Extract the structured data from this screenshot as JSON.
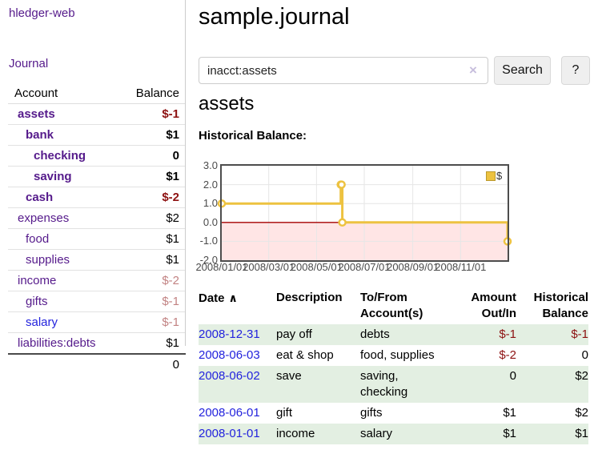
{
  "sidebar": {
    "app_title": "hledger-web",
    "journal_link": "Journal",
    "accounts_table": {
      "headers": {
        "account": "Account",
        "balance": "Balance"
      },
      "rows": [
        {
          "name": "assets",
          "balance": "$-1"
        },
        {
          "name": "bank",
          "balance": "$1"
        },
        {
          "name": "checking",
          "balance": "0"
        },
        {
          "name": "saving",
          "balance": "$1"
        },
        {
          "name": "cash",
          "balance": "$-2"
        },
        {
          "name": "expenses",
          "balance": "$2"
        },
        {
          "name": "food",
          "balance": "$1"
        },
        {
          "name": "supplies",
          "balance": "$1"
        },
        {
          "name": "income",
          "balance": "$-2"
        },
        {
          "name": "gifts",
          "balance": "$-1"
        },
        {
          "name": "salary",
          "balance": "$-1"
        },
        {
          "name": "liabilities:debts",
          "balance": "$1"
        }
      ],
      "total": "0"
    }
  },
  "main": {
    "title": "sample.journal",
    "search": {
      "query": "inacct:assets",
      "clear_icon": "×",
      "button_label": "Search",
      "help_label": "?"
    },
    "account_heading": "assets",
    "chart_label": "Historical Balance:",
    "register": {
      "headers": {
        "date": "Date",
        "sort_icon": "∧",
        "description": "Description",
        "account": "To/From\nAccount(s)",
        "amount": "Amount\nOut/In",
        "balance": "Historical\nBalance"
      },
      "rows": [
        {
          "date": "2008-12-31",
          "description": "pay off",
          "account": "debts",
          "amount": "$-1",
          "balance": "$-1"
        },
        {
          "date": "2008-06-03",
          "description": "eat & shop",
          "account": "food, supplies",
          "amount": "$-2",
          "balance": "0"
        },
        {
          "date": "2008-06-02",
          "description": "save",
          "account": "saving,\nchecking",
          "amount": "0",
          "balance": "$2"
        },
        {
          "date": "2008-06-01",
          "description": "gift",
          "account": "gifts",
          "amount": "$1",
          "balance": "$2"
        },
        {
          "date": "2008-01-01",
          "description": "income",
          "account": "salary",
          "amount": "$1",
          "balance": "$1"
        }
      ]
    }
  },
  "chart_data": {
    "type": "line",
    "step": true,
    "title": "Historical Balance",
    "series": [
      {
        "name": "$",
        "color": "#edc240",
        "points": [
          [
            "2008-01-01",
            1
          ],
          [
            "2008-06-01",
            2
          ],
          [
            "2008-06-02",
            2
          ],
          [
            "2008-06-03",
            0
          ],
          [
            "2008-12-31",
            -1
          ]
        ]
      }
    ],
    "x_range": [
      "2008-01-01",
      "2008-12-31"
    ],
    "ylim": [
      -2,
      3
    ],
    "y_ticks": [
      "3.0",
      "2.0",
      "1.0",
      "0.0",
      "-1.0",
      "-2.0"
    ],
    "x_ticks": [
      {
        "date": "2008-01-01",
        "label": "2008/01/01"
      },
      {
        "date": "2008-03-01",
        "label": "2008/03/01"
      },
      {
        "date": "2008-05-01",
        "label": "2008/05/01"
      },
      {
        "date": "2008-07-01",
        "label": "2008/07/01"
      },
      {
        "date": "2008-09-01",
        "label": "2008/09/01"
      },
      {
        "date": "2008-11-01",
        "label": "2008/11/01"
      }
    ],
    "legend_position": "top-right",
    "grid": true,
    "negative_region": true,
    "negative_region_color": "rgba(255,0,0,0.10)",
    "zero_line_color": "#a40000"
  },
  "colors": {
    "link_purple": "#551a8b",
    "link_blue": "#2323dd",
    "negative_strong": "#8d1111",
    "negative_faded": "#c28383",
    "row_stripe_green": "#e3efe2",
    "chart_line": "#edc240"
  }
}
